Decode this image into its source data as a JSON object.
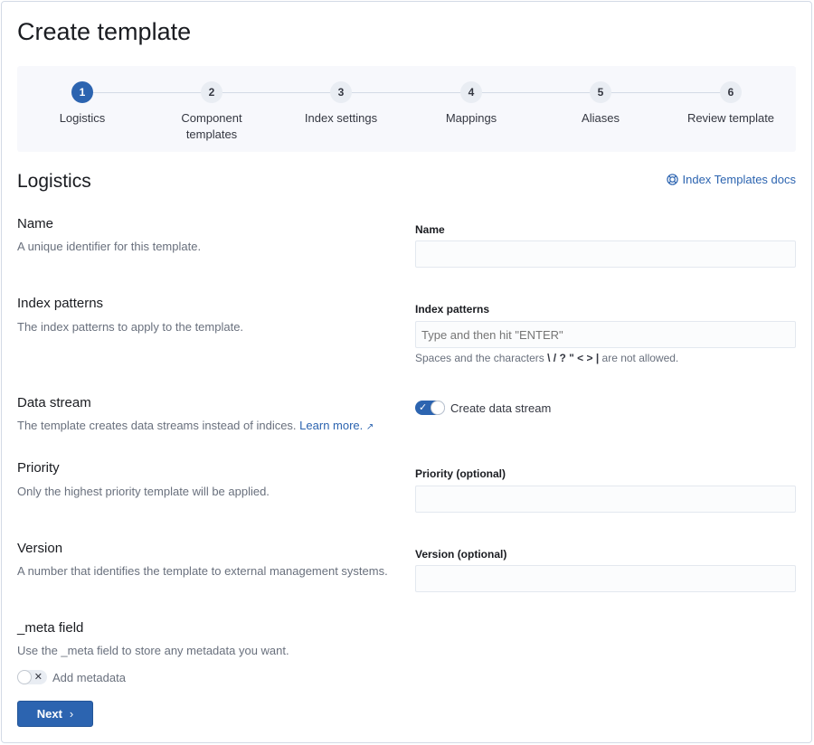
{
  "title": "Create template",
  "steps": [
    {
      "number": "1",
      "label": "Logistics",
      "active": true
    },
    {
      "number": "2",
      "label": "Component templates"
    },
    {
      "number": "3",
      "label": "Index settings"
    },
    {
      "number": "4",
      "label": "Mappings"
    },
    {
      "number": "5",
      "label": "Aliases"
    },
    {
      "number": "6",
      "label": "Review template"
    }
  ],
  "section_title": "Logistics",
  "docs_link": "Index Templates docs",
  "name": {
    "title": "Name",
    "description": "A unique identifier for this template.",
    "label": "Name",
    "value": ""
  },
  "index_patterns": {
    "title": "Index patterns",
    "description": "The index patterns to apply to the template.",
    "label": "Index patterns",
    "placeholder": "Type and then hit \"ENTER\"",
    "help_prefix": "Spaces and the characters",
    "help_chars": "\\ / ? \" < > |",
    "help_suffix": "are not allowed."
  },
  "data_stream": {
    "title": "Data stream",
    "description": "The template creates data streams instead of indices.",
    "learn_more": "Learn more.",
    "toggle_label": "Create data stream",
    "enabled": true
  },
  "priority": {
    "title": "Priority",
    "description": "Only the highest priority template will be applied.",
    "label": "Priority (optional)",
    "value": ""
  },
  "version": {
    "title": "Version",
    "description": "A number that identifies the template to external management systems.",
    "label": "Version (optional)",
    "value": ""
  },
  "meta": {
    "title": "_meta field",
    "description": "Use the _meta field to store any metadata you want.",
    "toggle_label": "Add metadata",
    "enabled": false
  },
  "next_button": "Next",
  "colors": {
    "primary": "#2c64b0",
    "steps_bg": "#f7f8fc"
  }
}
